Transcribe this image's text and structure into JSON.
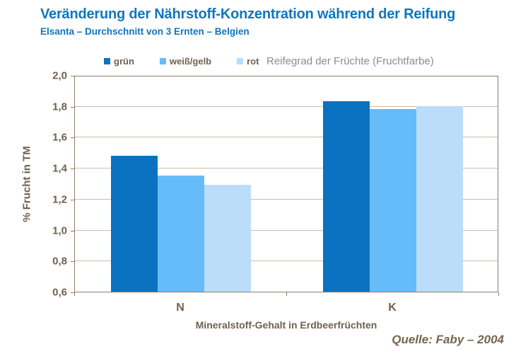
{
  "header": {
    "title": "Veränderung der Nährstoff-Konzentration während der Reifung",
    "subtitle": "Elsanta – Durchschnitt von 3 Ernten – Belgien"
  },
  "legend": {
    "items": [
      {
        "label": "grün",
        "color": "#0A72C0",
        "icon": "legend-swatch-green-stage"
      },
      {
        "label": "weiß/gelb",
        "color": "#66BCF9",
        "icon": "legend-swatch-white-yellow-stage"
      },
      {
        "label": "rot",
        "color": "#BBDDF9",
        "icon": "legend-swatch-red-stage"
      }
    ],
    "note": "Reifegrad der Früchte (Fruchtfarbe)"
  },
  "chart_data": {
    "type": "bar",
    "categories": [
      "N",
      "K"
    ],
    "series": [
      {
        "name": "grün",
        "color": "#0A72C0",
        "values": [
          1.48,
          1.83
        ]
      },
      {
        "name": "weiß/gelb",
        "color": "#66BCF9",
        "values": [
          1.35,
          1.78
        ]
      },
      {
        "name": "rot",
        "color": "#BBDDF9",
        "values": [
          1.29,
          1.8
        ]
      }
    ],
    "xlabel": "Mineralstoff-Gehalt in Erdbeerfrüchten",
    "ylabel": "% Frucht in TM",
    "ylim": [
      0.6,
      2.0
    ],
    "ytick_step": 0.2,
    "ytick_labels": [
      "0,6",
      "0,8",
      "1,0",
      "1,2",
      "1,4",
      "1,6",
      "1,8",
      "2,0"
    ],
    "grid": true,
    "legend_position": "top"
  },
  "source": "Quelle:  Faby – 2004",
  "colors": {
    "title_blue": "#0E76BE",
    "axis_line": "#8C7D6B",
    "gridline": "#C9BDAE",
    "axis_text": "#6F6150",
    "legend_note_gray": "#8C8C8C"
  }
}
